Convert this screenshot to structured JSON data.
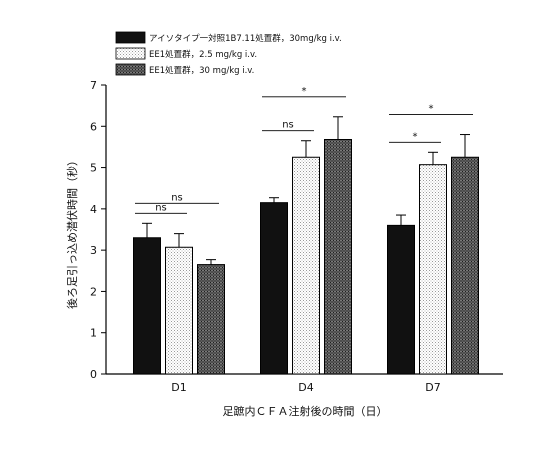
{
  "chart_data": {
    "type": "bar",
    "xlabel": "足蹠内ＣＦＡ注射後の時間（日）",
    "ylabel": "後ろ足引っ込め潜伏時間（秒）",
    "ylim": [
      0,
      7
    ],
    "yticks": [
      0,
      1,
      2,
      3,
      4,
      5,
      6,
      7
    ],
    "categories": [
      "D1",
      "D4",
      "D7"
    ],
    "legend_position": "top-left",
    "series": [
      {
        "name": "アイソタイプ一対照1B7.11処置群，30mg/kg i.v.",
        "values": [
          3.3,
          4.15,
          3.6
        ],
        "errors": [
          0.35,
          0.12,
          0.25
        ],
        "pattern": "solid-black"
      },
      {
        "name": "EE1処置群，2.5 mg/kg i.v.",
        "values": [
          3.07,
          5.25,
          5.07
        ],
        "errors": [
          0.33,
          0.4,
          0.3
        ],
        "pattern": "light-dots"
      },
      {
        "name": "EE1処置群，30 mg/kg i.v.",
        "values": [
          2.65,
          5.68,
          5.25
        ],
        "errors": [
          0.12,
          0.55,
          0.55
        ],
        "pattern": "dark-dots"
      }
    ],
    "significance": [
      {
        "category": "D1",
        "from_series": 0,
        "to_series": 1,
        "label": "ns"
      },
      {
        "category": "D1",
        "from_series": 0,
        "to_series": 2,
        "label": "ns"
      },
      {
        "category": "D4",
        "from_series": 0,
        "to_series": 1,
        "label": "ns"
      },
      {
        "category": "D4",
        "from_series": 0,
        "to_series": 2,
        "label": "*"
      },
      {
        "category": "D7",
        "from_series": 0,
        "to_series": 1,
        "label": "*"
      },
      {
        "category": "D7",
        "from_series": 0,
        "to_series": 2,
        "label": "*"
      }
    ]
  }
}
